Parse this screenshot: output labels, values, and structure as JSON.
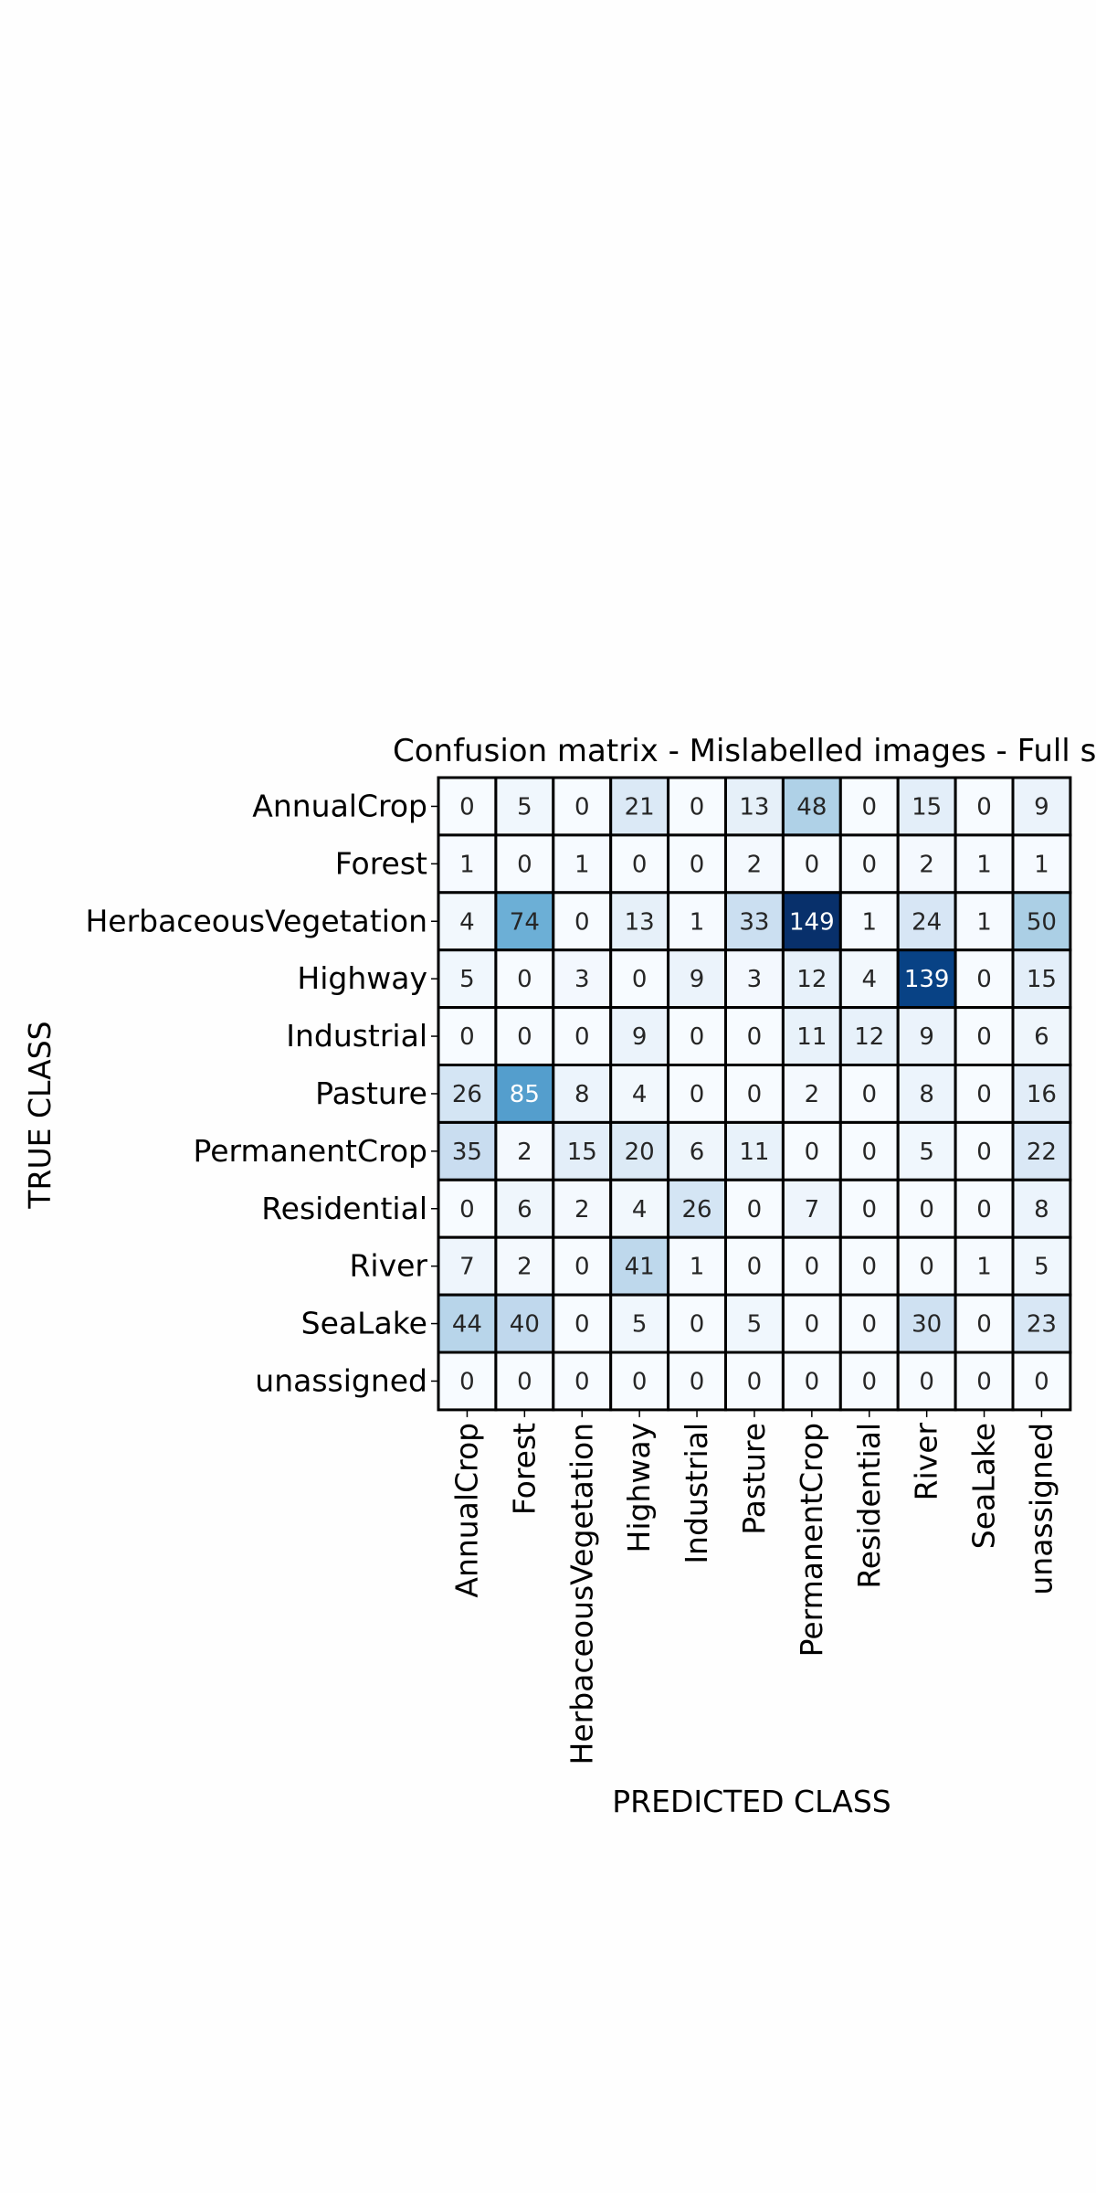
{
  "chart_data": {
    "type": "heatmap",
    "title": "Confusion matrix - Mislabelled images - Full se",
    "xlabel": "PREDICTED CLASS",
    "ylabel": "TRUE CLASS",
    "x_categories": [
      "AnnualCrop",
      "Forest",
      "HerbaceousVegetation",
      "Highway",
      "Industrial",
      "Pasture",
      "PermanentCrop",
      "Residential",
      "River",
      "SeaLake",
      "unassigned"
    ],
    "y_categories": [
      "AnnualCrop",
      "Forest",
      "HerbaceousVegetation",
      "Highway",
      "Industrial",
      "Pasture",
      "PermanentCrop",
      "Residential",
      "River",
      "SeaLake",
      "unassigned"
    ],
    "values": [
      [
        0,
        5,
        0,
        21,
        0,
        13,
        48,
        0,
        15,
        0,
        9
      ],
      [
        1,
        0,
        1,
        0,
        0,
        2,
        0,
        0,
        2,
        1,
        1
      ],
      [
        4,
        74,
        0,
        13,
        1,
        33,
        149,
        1,
        24,
        1,
        50
      ],
      [
        5,
        0,
        3,
        0,
        9,
        3,
        12,
        4,
        139,
        0,
        15
      ],
      [
        0,
        0,
        0,
        9,
        0,
        0,
        11,
        12,
        9,
        0,
        6
      ],
      [
        26,
        85,
        8,
        4,
        0,
        0,
        2,
        0,
        8,
        0,
        16
      ],
      [
        35,
        2,
        15,
        20,
        6,
        11,
        0,
        0,
        5,
        0,
        22
      ],
      [
        0,
        6,
        2,
        4,
        26,
        0,
        7,
        0,
        0,
        0,
        8
      ],
      [
        7,
        2,
        0,
        41,
        1,
        0,
        0,
        0,
        0,
        1,
        5
      ],
      [
        44,
        40,
        0,
        5,
        0,
        5,
        0,
        0,
        30,
        0,
        23
      ],
      [
        0,
        0,
        0,
        0,
        0,
        0,
        0,
        0,
        0,
        0,
        0
      ]
    ],
    "value_range": [
      0,
      149
    ],
    "colormap": "Blues",
    "grid": true,
    "legend": "none"
  }
}
